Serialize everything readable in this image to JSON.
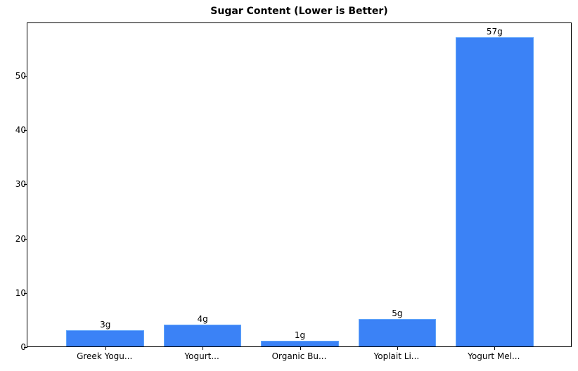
{
  "chart_data": {
    "type": "bar",
    "title": "Sugar Content (Lower is Better)",
    "xlabel": "",
    "ylabel": "",
    "categories": [
      "Greek Yogu...",
      "Yogurt...",
      "Organic Bu...",
      "Yoplait Li...",
      "Yogurt Mel..."
    ],
    "values": [
      3,
      4,
      1,
      5,
      57
    ],
    "value_labels": [
      "3g",
      "4g",
      "1g",
      "5g",
      "57g"
    ],
    "ylim": [
      0,
      59.85
    ],
    "yticks": [
      0,
      10,
      20,
      30,
      40,
      50
    ],
    "grid": false,
    "legend": null,
    "bar_color": "#3b82f6",
    "bar_edge_color": "#60a5fa"
  }
}
